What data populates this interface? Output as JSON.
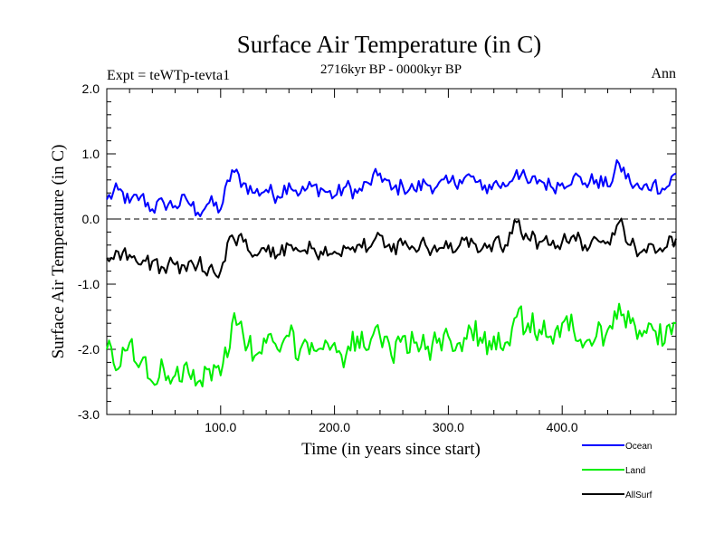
{
  "chart_data": {
    "type": "line",
    "title": "Surface Air Temperature (in C)",
    "subtitle": "2716kyr BP - 0000kyr BP",
    "experiment_label": "Expt = teWTp-tevta1",
    "period_label": "Ann",
    "xlabel": "Time (in years since start)",
    "ylabel": "Surface Air Temperature (in C)",
    "xlim": [
      0,
      500
    ],
    "ylim": [
      -3.0,
      2.0
    ],
    "x_ticks": [
      100,
      200,
      300,
      400
    ],
    "x_tick_labels": [
      "100.0",
      "200.0",
      "300.0",
      "400.0"
    ],
    "y_ticks": [
      2.0,
      1.0,
      0.0,
      -1.0,
      -2.0,
      -3.0
    ],
    "y_tick_labels": [
      "2.0",
      "1.0",
      "0.0",
      "-1.0",
      "-2.0",
      "-3.0"
    ],
    "reference_line": 0.0,
    "x": [
      0,
      10,
      20,
      30,
      40,
      50,
      60,
      70,
      80,
      90,
      100,
      110,
      120,
      130,
      140,
      150,
      160,
      170,
      180,
      190,
      200,
      210,
      220,
      230,
      240,
      250,
      260,
      270,
      280,
      290,
      300,
      310,
      320,
      330,
      340,
      350,
      360,
      370,
      380,
      390,
      400,
      410,
      420,
      430,
      440,
      450,
      460,
      470,
      480,
      490,
      500
    ],
    "series": [
      {
        "name": "Ocean",
        "color": "#0000ff",
        "values": [
          0.3,
          0.45,
          0.25,
          0.35,
          0.15,
          0.25,
          0.2,
          0.3,
          0.1,
          0.25,
          0.15,
          0.75,
          0.55,
          0.4,
          0.45,
          0.35,
          0.55,
          0.4,
          0.5,
          0.45,
          0.35,
          0.5,
          0.4,
          0.55,
          0.7,
          0.45,
          0.5,
          0.45,
          0.55,
          0.5,
          0.55,
          0.6,
          0.65,
          0.45,
          0.55,
          0.5,
          0.75,
          0.55,
          0.6,
          0.5,
          0.55,
          0.65,
          0.55,
          0.6,
          0.5,
          0.85,
          0.55,
          0.45,
          0.55,
          0.45,
          0.7
        ]
      },
      {
        "name": "Land",
        "color": "#00ee00",
        "values": [
          -2.0,
          -2.3,
          -1.9,
          -2.2,
          -2.5,
          -2.3,
          -2.4,
          -2.2,
          -2.5,
          -2.3,
          -2.4,
          -1.6,
          -1.8,
          -2.1,
          -1.9,
          -2.0,
          -1.8,
          -2.0,
          -1.9,
          -2.0,
          -1.9,
          -2.1,
          -1.8,
          -2.0,
          -1.8,
          -2.1,
          -1.8,
          -1.9,
          -2.0,
          -1.9,
          -1.8,
          -1.9,
          -1.7,
          -1.9,
          -1.8,
          -1.9,
          -1.5,
          -1.6,
          -1.7,
          -1.8,
          -1.6,
          -1.7,
          -1.9,
          -1.8,
          -1.7,
          -1.3,
          -1.6,
          -1.8,
          -1.7,
          -1.9,
          -1.6
        ]
      },
      {
        "name": "AllSurf",
        "color": "#000000",
        "values": [
          -0.6,
          -0.5,
          -0.55,
          -0.7,
          -0.65,
          -0.75,
          -0.7,
          -0.8,
          -0.7,
          -0.75,
          -0.8,
          -0.25,
          -0.35,
          -0.55,
          -0.5,
          -0.55,
          -0.4,
          -0.5,
          -0.45,
          -0.55,
          -0.5,
          -0.45,
          -0.4,
          -0.45,
          -0.25,
          -0.5,
          -0.4,
          -0.45,
          -0.4,
          -0.5,
          -0.45,
          -0.4,
          -0.3,
          -0.45,
          -0.35,
          -0.4,
          -0.05,
          -0.3,
          -0.35,
          -0.4,
          -0.35,
          -0.25,
          -0.4,
          -0.3,
          -0.35,
          -0.05,
          -0.4,
          -0.5,
          -0.4,
          -0.45,
          -0.3
        ]
      }
    ],
    "legend_position": "bottom-right"
  }
}
